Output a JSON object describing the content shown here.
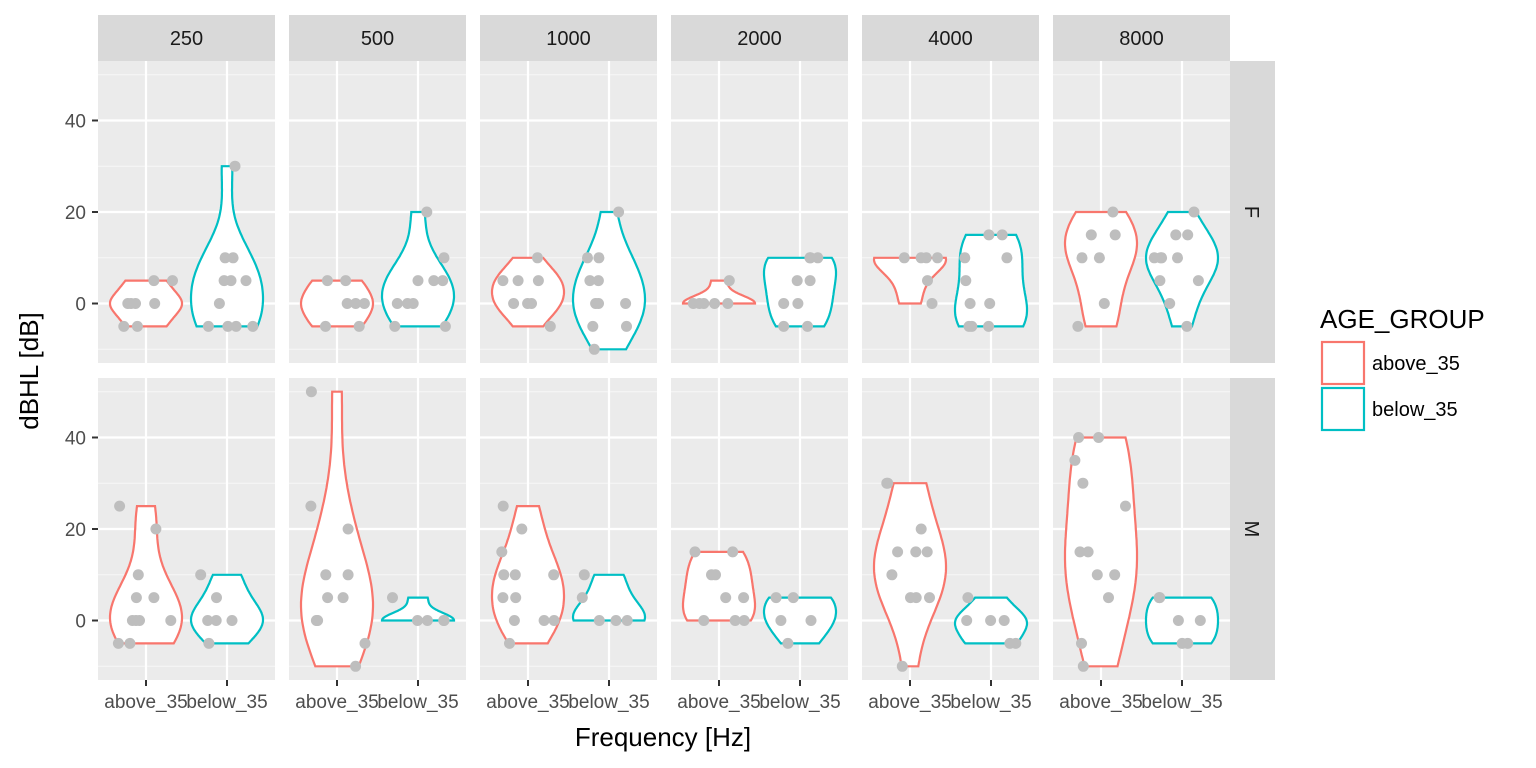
{
  "chart_data": {
    "type": "violin",
    "xlabel": "Frequency [Hz]",
    "ylabel": "dBHL [dB]",
    "ylim": [
      -13,
      53
    ],
    "yticks": [
      0,
      20,
      40
    ],
    "grid": true,
    "facet_cols": [
      "250",
      "500",
      "1000",
      "2000",
      "4000",
      "8000"
    ],
    "facet_rows": [
      "F",
      "M"
    ],
    "categories": [
      "above_35",
      "below_35"
    ],
    "legend": {
      "title": "AGE_GROUP",
      "position": "right",
      "items": [
        {
          "label": "above_35",
          "color": "#F8766D"
        },
        {
          "label": "below_35",
          "color": "#00BFC4"
        }
      ]
    },
    "point_color": "#BEBEBE",
    "points": {
      "F": {
        "250": {
          "above_35": [
            5,
            5,
            0,
            0,
            0,
            0,
            -5,
            -5
          ],
          "below_35": [
            30,
            10,
            5,
            5,
            5,
            10,
            0,
            -5,
            -5,
            -5,
            -5
          ]
        },
        "500": {
          "above_35": [
            5,
            5,
            0,
            0,
            0,
            -5,
            -5
          ],
          "below_35": [
            20,
            10,
            5,
            5,
            5,
            0,
            0,
            0,
            -5,
            -5
          ]
        },
        "1000": {
          "above_35": [
            10,
            5,
            5,
            5,
            0,
            0,
            0,
            -5
          ],
          "below_35": [
            20,
            10,
            10,
            5,
            5,
            0,
            0,
            0,
            -5,
            -5,
            -10
          ]
        },
        "2000": {
          "above_35": [
            5,
            0,
            0,
            0,
            0,
            0
          ],
          "below_35": [
            10,
            10,
            5,
            5,
            10,
            0,
            0,
            -5,
            -5
          ]
        },
        "4000": {
          "above_35": [
            10,
            10,
            10,
            10,
            5,
            0
          ],
          "below_35": [
            15,
            10,
            10,
            5,
            0,
            0,
            -5,
            -5,
            -5,
            15
          ]
        },
        "8000": {
          "above_35": [
            20,
            15,
            15,
            10,
            10,
            0,
            -5
          ],
          "below_35": [
            20,
            15,
            10,
            10,
            10,
            5,
            5,
            10,
            0,
            -5,
            15
          ]
        }
      },
      "M": {
        "250": {
          "above_35": [
            25,
            20,
            10,
            5,
            5,
            0,
            0,
            0,
            0,
            -5,
            -5
          ],
          "below_35": [
            10,
            5,
            0,
            0,
            0,
            -5
          ]
        },
        "500": {
          "above_35": [
            50,
            25,
            20,
            10,
            10,
            5,
            5,
            0,
            0,
            0,
            -5,
            -10
          ],
          "below_35": [
            5,
            0,
            0,
            0,
            0
          ]
        },
        "1000": {
          "above_35": [
            25,
            20,
            15,
            10,
            10,
            10,
            5,
            5,
            0,
            0,
            0,
            -5
          ],
          "below_35": [
            10,
            5,
            0,
            0,
            0
          ]
        },
        "2000": {
          "above_35": [
            15,
            15,
            10,
            10,
            5,
            5,
            0,
            0,
            0
          ],
          "below_35": [
            5,
            5,
            0,
            0,
            -5
          ]
        },
        "4000": {
          "above_35": [
            30,
            30,
            20,
            15,
            15,
            15,
            10,
            5,
            5,
            5,
            -10
          ],
          "below_35": [
            5,
            0,
            0,
            0,
            -5,
            -5
          ]
        },
        "8000": {
          "above_35": [
            40,
            40,
            35,
            30,
            25,
            15,
            15,
            10,
            10,
            5,
            -5,
            -10
          ],
          "below_35": [
            5,
            5,
            0,
            0,
            -5,
            -5
          ]
        }
      }
    }
  }
}
